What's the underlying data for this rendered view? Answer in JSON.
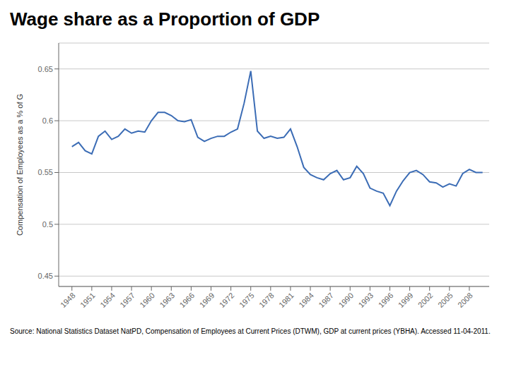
{
  "chart_data": {
    "type": "line",
    "title": "Wage share as a Proportion of GDP",
    "ylabel": "Compensation of Employees as a % of G",
    "annotations": [
      "Source: National Statistics Dataset NatPD, Compensation of Employees at Current Prices (DTWM), GDP at current prices (YBHA).  Accessed 11-04-2011."
    ],
    "x": [
      1948,
      1949,
      1950,
      1951,
      1952,
      1953,
      1954,
      1955,
      1956,
      1957,
      1958,
      1959,
      1960,
      1961,
      1962,
      1963,
      1964,
      1965,
      1966,
      1967,
      1968,
      1969,
      1970,
      1971,
      1972,
      1973,
      1974,
      1975,
      1976,
      1977,
      1978,
      1979,
      1980,
      1981,
      1982,
      1983,
      1984,
      1985,
      1986,
      1987,
      1988,
      1989,
      1990,
      1991,
      1992,
      1993,
      1994,
      1995,
      1996,
      1997,
      1998,
      1999,
      2000,
      2001,
      2002,
      2003,
      2004,
      2005,
      2006,
      2007,
      2008,
      2009,
      2010
    ],
    "values": [
      0.575,
      0.579,
      0.571,
      0.568,
      0.585,
      0.59,
      0.582,
      0.585,
      0.592,
      0.588,
      0.59,
      0.589,
      0.6,
      0.608,
      0.608,
      0.605,
      0.6,
      0.599,
      0.601,
      0.584,
      0.58,
      0.583,
      0.585,
      0.585,
      0.589,
      0.592,
      0.617,
      0.648,
      0.59,
      0.583,
      0.585,
      0.583,
      0.584,
      0.592,
      0.575,
      0.555,
      0.548,
      0.545,
      0.543,
      0.549,
      0.552,
      0.543,
      0.545,
      0.556,
      0.549,
      0.535,
      0.532,
      0.53,
      0.518,
      0.532,
      0.542,
      0.55,
      0.552,
      0.548,
      0.541,
      0.54,
      0.536,
      0.539,
      0.537,
      0.549,
      0.553,
      0.55,
      0.55
    ],
    "color": "#3B6CB5",
    "xlim": [
      1946,
      2011
    ],
    "xticks": [
      1948,
      1951,
      1954,
      1957,
      1960,
      1963,
      1966,
      1969,
      1972,
      1975,
      1978,
      1981,
      1984,
      1987,
      1990,
      1993,
      1996,
      1999,
      2002,
      2005,
      2008
    ],
    "ylim": [
      0.44,
      0.675
    ],
    "yticks": [
      0.45,
      0.5,
      0.55,
      0.6,
      0.65
    ],
    "grid": true
  }
}
